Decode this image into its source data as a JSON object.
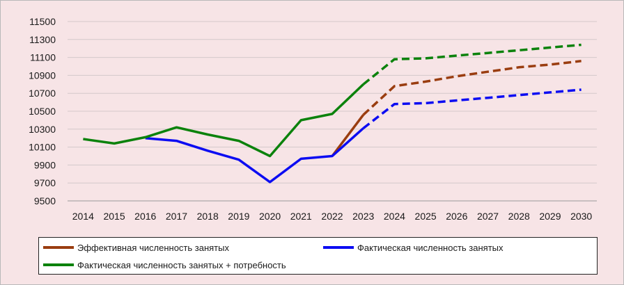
{
  "chart_data": {
    "type": "line",
    "x": [
      "2014",
      "2015",
      "2016",
      "2017",
      "2018",
      "2019",
      "2020",
      "2021",
      "2022",
      "2023",
      "2024",
      "2025",
      "2026",
      "2027",
      "2028",
      "2029",
      "2030"
    ],
    "ylim": [
      9500,
      11500
    ],
    "yticks": [
      9500,
      9700,
      9900,
      10100,
      10300,
      10500,
      10700,
      10900,
      11100,
      11300,
      11500
    ],
    "grid": true,
    "legend_position": "bottom",
    "series": [
      {
        "name": "Эффективная численность занятых",
        "color": "#9a3d10",
        "values": [
          null,
          null,
          null,
          null,
          null,
          null,
          null,
          null,
          10000,
          10460,
          10780,
          10830,
          10890,
          10940,
          10990,
          11020,
          11060
        ],
        "dash_from_index": 9
      },
      {
        "name": "Фактическая численность занятых",
        "color": "#0c0cf2",
        "values": [
          null,
          null,
          10200,
          10170,
          10060,
          9960,
          9710,
          9970,
          10000,
          10310,
          10580,
          10590,
          10620,
          10650,
          10680,
          10710,
          10740
        ],
        "dash_from_index": 9
      },
      {
        "name": "Фактическая численность занятых + потребность",
        "color": "#0c820c",
        "values": [
          10190,
          10140,
          10210,
          10320,
          10240,
          10170,
          10000,
          10400,
          10470,
          10800,
          11080,
          11090,
          11120,
          11150,
          11180,
          11210,
          11240
        ],
        "dash_from_index": 9
      }
    ]
  }
}
